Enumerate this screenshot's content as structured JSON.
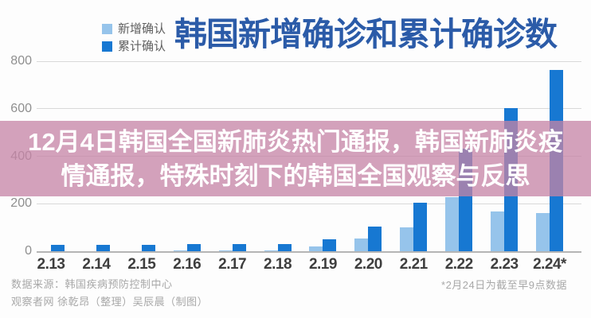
{
  "title": "韩国新增确诊和累计确诊数",
  "legend": {
    "items": [
      {
        "label": "新增确认",
        "color": "#96C4EB"
      },
      {
        "label": "累计确认",
        "color": "#1778D2"
      }
    ]
  },
  "overlay": {
    "lines": [
      "12月4日韩国全国新肺炎热门通报，韩国新肺炎疫",
      "情通报，特殊时刻下的韩国全国观察与反思"
    ],
    "background": "#C584A6",
    "text_color": "#FFFFFF"
  },
  "chart_data": {
    "type": "bar",
    "title": "韩国新增确诊和累计确诊数",
    "categories": [
      "2.13",
      "2.14",
      "2.15",
      "2.16",
      "2.17",
      "2.18",
      "2.19",
      "2.20",
      "2.21",
      "2.22",
      "2.23",
      "2.24*"
    ],
    "series": [
      {
        "name": "新增确认",
        "color": "#96C4EB",
        "values": [
          0,
          0,
          0,
          1,
          1,
          1,
          20,
          53,
          100,
          229,
          169,
          161
        ]
      },
      {
        "name": "累计确认",
        "color": "#1778D2",
        "values": [
          28,
          28,
          28,
          29,
          30,
          31,
          51,
          104,
          204,
          433,
          602,
          763
        ]
      }
    ],
    "xlabel": "",
    "ylabel": "",
    "ylim": [
      0,
      800
    ],
    "yticks": [
      0,
      200,
      400,
      600,
      800
    ],
    "grid": "horizontal",
    "legend_position": "top-left"
  },
  "footer": {
    "source": "数据来源：韩国疾病预防控制中心",
    "credits": "观察者网 徐乾昂（整理）吴辰晨（制图）",
    "note": "*2月24日为截至早9点数据"
  },
  "colors": {
    "title": "#2B5BA8",
    "y_tick_label": "#8F8F8F",
    "x_tick_label": "#3E3E3E",
    "gridline": "#D9D9D9",
    "axis_line": "#B5B5B5",
    "footer_text": "#A8A8A8",
    "background": "#FDFDFD"
  }
}
